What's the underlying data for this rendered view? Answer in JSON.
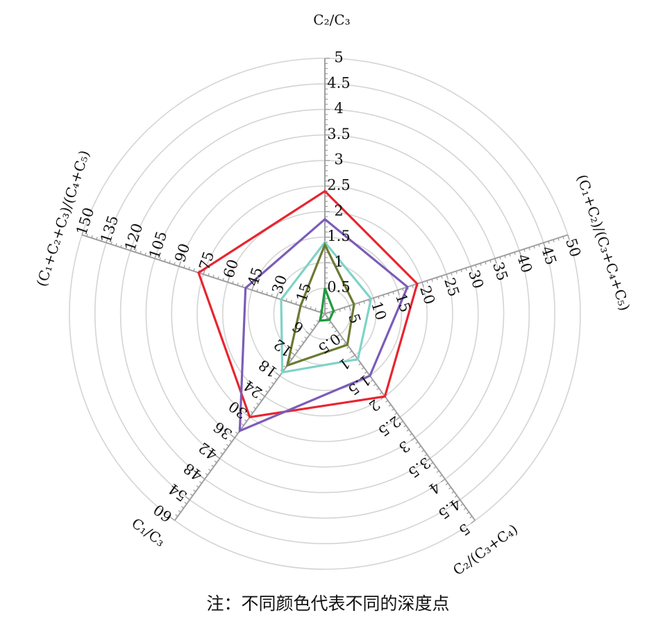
{
  "chart_data": {
    "type": "radar",
    "grid": true,
    "axes": [
      {
        "title": "C₂/C₃",
        "min": 0,
        "max": 5,
        "ticks": [
          "0.5",
          "1",
          "1.5",
          "2",
          "2.5",
          "3",
          "3.5",
          "4",
          "4.5",
          "5"
        ]
      },
      {
        "title": "(C₁+C₂)/(C₃+C₄+C₅)",
        "min": 0,
        "max": 50,
        "ticks": [
          "5",
          "10",
          "15",
          "20",
          "25",
          "30",
          "35",
          "40",
          "45",
          "50"
        ]
      },
      {
        "title": "C₂/(C₃+C₄)",
        "min": 0,
        "max": 5,
        "ticks": [
          "0.5",
          "1",
          "1.5",
          "2",
          "2.5",
          "3",
          "3.5",
          "4",
          "4.5",
          "5"
        ]
      },
      {
        "title": "C₁/C₃",
        "min": 0,
        "max": 60,
        "ticks": [
          "6",
          "12",
          "18",
          "24",
          "30",
          "36",
          "42",
          "48",
          "54",
          "60"
        ]
      },
      {
        "title": "(C₁+C₂+C₃)/(C₄+C₅)",
        "min": 0,
        "max": 150,
        "ticks": [
          "15",
          "30",
          "45",
          "60",
          "75",
          "90",
          "105",
          "120",
          "135",
          "150"
        ]
      }
    ],
    "series": [
      {
        "color": "#e8252f",
        "values": [
          2.4,
          19,
          2.0,
          30,
          78
        ]
      },
      {
        "color": "#7b5cb8",
        "values": [
          1.85,
          17,
          1.5,
          34,
          49
        ]
      },
      {
        "color": "#7fd3c6",
        "values": [
          1.4,
          9.5,
          1.1,
          17,
          27
        ]
      },
      {
        "color": "#6b7a32",
        "values": [
          1.35,
          6,
          0.75,
          15,
          15
        ]
      },
      {
        "color": "#1f9a3c",
        "values": [
          0.5,
          1.8,
          0.15,
          2,
          2
        ]
      }
    ]
  },
  "note": "注：不同颜色代表不同的深度点"
}
